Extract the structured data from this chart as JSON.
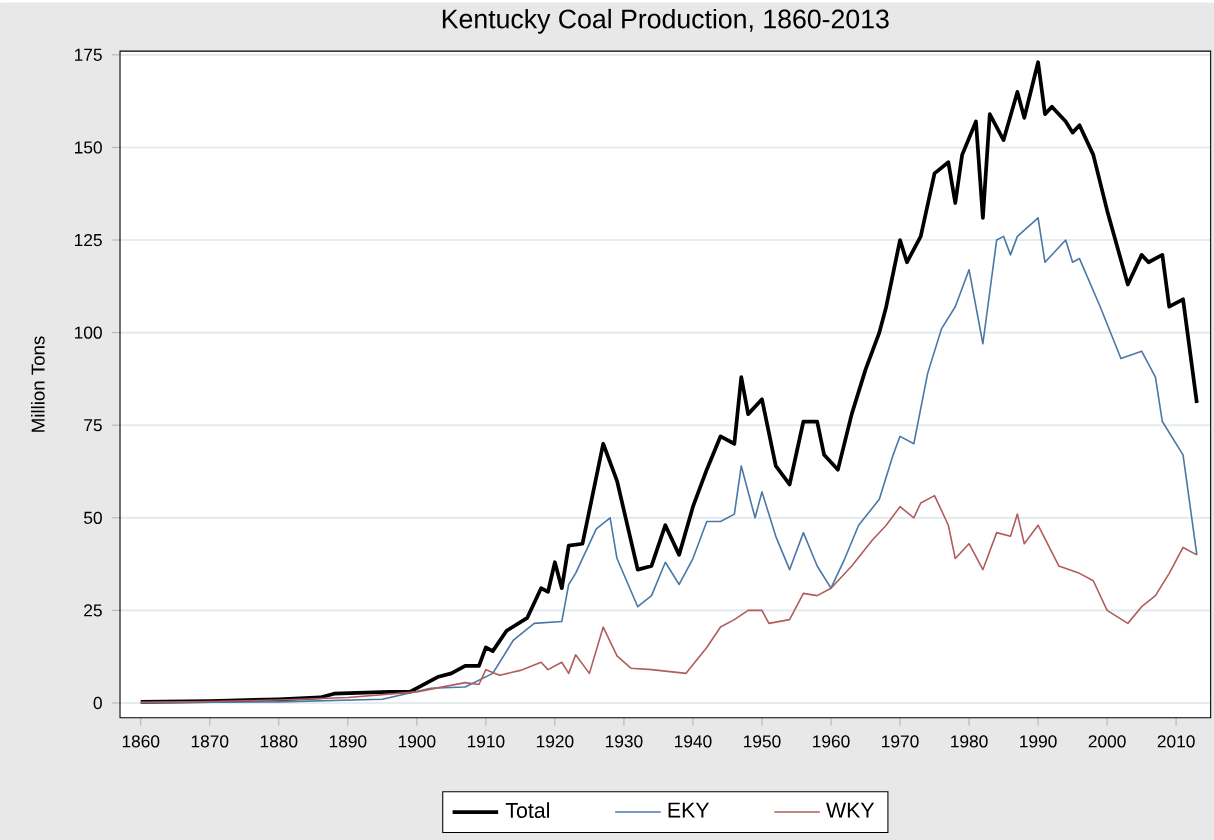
{
  "chart_data": {
    "type": "line",
    "title": "Kentucky Coal Production, 1860-2013",
    "ylabel": "Million Tons",
    "xlim": [
      1857,
      2015
    ],
    "xticks": [
      1860,
      1870,
      1880,
      1890,
      1900,
      1910,
      1920,
      1930,
      1940,
      1950,
      1960,
      1970,
      1980,
      1990,
      2000,
      2010
    ],
    "ylim": [
      -4,
      176
    ],
    "yticks": [
      0,
      25,
      50,
      75,
      100,
      125,
      150,
      175
    ],
    "grid": "y",
    "legend": "bottom",
    "marker": "none",
    "series": [
      {
        "name": "Total",
        "color": "#000000",
        "x": [
          1860,
          1870,
          1880,
          1886,
          1888,
          1896,
          1899,
          1903,
          1905,
          1907,
          1909,
          1910,
          1911,
          1913,
          1916,
          1918,
          1919,
          1920,
          1921,
          1922,
          1924,
          1927,
          1929,
          1932,
          1934,
          1936,
          1938,
          1940,
          1942,
          1944,
          1946,
          1947,
          1948,
          1950,
          1952,
          1954,
          1956,
          1958,
          1959,
          1961,
          1963,
          1965,
          1967,
          1968,
          1970,
          1971,
          1973,
          1975,
          1977,
          1978,
          1979,
          1981,
          1982,
          1983,
          1985,
          1987,
          1988,
          1990,
          1991,
          1992,
          1994,
          1995,
          1996,
          1998,
          2000,
          2003,
          2005,
          2006,
          2008,
          2009,
          2011,
          2013
        ],
        "values": [
          0.3,
          0.5,
          1,
          1.5,
          2.5,
          3,
          3,
          7,
          8,
          10,
          10,
          15,
          14,
          19.5,
          23,
          31,
          30,
          38,
          31,
          42.5,
          43,
          70,
          60,
          36,
          37,
          48,
          40,
          53,
          63,
          72,
          70,
          88,
          78,
          82,
          64,
          59,
          76,
          76,
          67,
          63,
          78,
          90,
          100,
          107,
          125,
          119,
          126,
          143,
          146,
          135,
          148,
          157,
          131,
          159,
          152,
          165,
          158,
          173,
          159,
          161,
          157,
          154,
          156,
          148,
          133,
          113,
          121,
          119,
          121,
          107,
          109,
          81
        ]
      },
      {
        "name": "EKY",
        "color": "#4a78a6",
        "x": [
          1860,
          1880,
          1895,
          1902,
          1907,
          1911,
          1914,
          1917,
          1921,
          1922,
          1923,
          1926,
          1928,
          1929,
          1932,
          1934,
          1936,
          1938,
          1940,
          1942,
          1944,
          1946,
          1947,
          1949,
          1950,
          1952,
          1954,
          1956,
          1958,
          1960,
          1962,
          1964,
          1967,
          1969,
          1970,
          1972,
          1974,
          1976,
          1978,
          1980,
          1982,
          1984,
          1985,
          1986,
          1987,
          1990,
          1991,
          1994,
          1995,
          1996,
          1999,
          2002,
          2005,
          2007,
          2008,
          2011,
          2013
        ],
        "values": [
          0.1,
          0.3,
          1,
          4,
          4.3,
          8,
          17,
          21.5,
          22,
          32,
          35,
          47,
          50,
          39,
          26,
          29,
          38,
          32,
          39,
          49,
          49,
          51,
          64,
          50,
          57,
          45,
          36,
          46,
          37,
          31,
          39,
          48,
          55,
          67,
          72,
          70,
          89,
          101,
          107,
          117,
          97,
          125,
          126,
          121,
          126,
          131,
          119,
          125,
          119,
          120,
          107,
          93,
          95,
          88,
          76,
          67,
          40
        ]
      },
      {
        "name": "WKY",
        "color": "#b35c5c",
        "x": [
          1860,
          1870,
          1880,
          1890,
          1900,
          1907,
          1909,
          1910,
          1912,
          1915,
          1918,
          1919,
          1921,
          1922,
          1923,
          1925,
          1927,
          1929,
          1931,
          1934,
          1939,
          1942,
          1944,
          1946,
          1948,
          1950,
          1951,
          1954,
          1956,
          1958,
          1960,
          1963,
          1966,
          1968,
          1970,
          1972,
          1973,
          1975,
          1977,
          1978,
          1980,
          1982,
          1984,
          1986,
          1987,
          1988,
          1990,
          1993,
          1996,
          1998,
          2000,
          2003,
          2005,
          2007,
          2009,
          2011,
          2013
        ],
        "values": [
          0.2,
          0.4,
          0.8,
          1.5,
          3,
          5.5,
          5,
          9,
          7.5,
          8.8,
          11,
          9,
          11,
          8,
          13,
          8,
          20.5,
          12.7,
          9.4,
          9,
          8,
          15,
          20.5,
          22.5,
          25,
          25,
          21.5,
          22.5,
          29.6,
          29,
          31,
          37,
          44,
          48,
          53,
          50,
          54,
          56,
          48,
          39,
          43,
          36,
          46,
          45,
          51,
          43,
          48,
          37,
          35,
          33,
          25,
          21.5,
          26,
          29,
          35,
          42,
          40
        ]
      }
    ]
  }
}
